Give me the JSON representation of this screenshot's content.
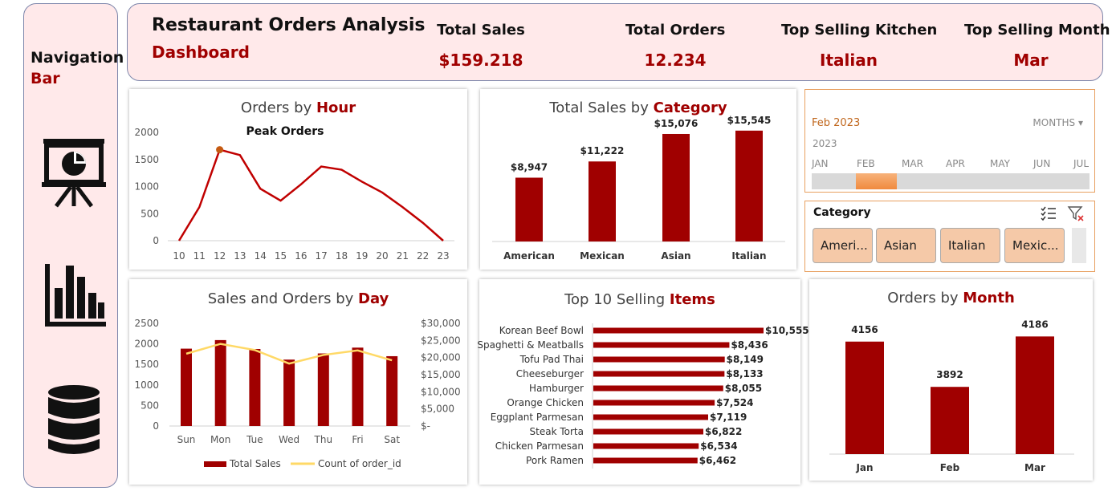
{
  "nav": {
    "title": "Navigation",
    "subtitle": "Bar",
    "icons": [
      "presentation-chart-icon",
      "bar-chart-icon",
      "database-icon"
    ]
  },
  "header": {
    "title": "Restaurant Orders Analysis",
    "subtitle": "Dashboard",
    "kpis": [
      {
        "label": "Total Sales",
        "value": "$159.218"
      },
      {
        "label": "Total Orders",
        "value": "12.234"
      },
      {
        "label": "Top Selling Kitchen",
        "value": "Italian"
      },
      {
        "label": "Top Selling Month",
        "value": "Mar"
      }
    ]
  },
  "colors": {
    "accent": "#a00000",
    "line": "#c00000",
    "marker": "#c55a11",
    "count_line": "#ffd966",
    "slicer": "#f5c9a8",
    "timeline": "#f08a3e"
  },
  "timeline": {
    "selected": "Feb 2023",
    "mode": "MONTHS",
    "year": "2023",
    "months": [
      "JAN",
      "FEB",
      "MAR",
      "APR",
      "MAY",
      "JUN",
      "JUL"
    ]
  },
  "slicer": {
    "title": "Category",
    "items": [
      "Ameri...",
      "Asian",
      "Italian",
      "Mexic..."
    ]
  },
  "charts": {
    "hour": {
      "title_plain": "Orders by ",
      "title_accent": "Hour"
    },
    "category": {
      "title_plain": "Total Sales by ",
      "title_accent": "Category"
    },
    "day": {
      "title_plain": "Sales and Orders by ",
      "title_accent": "Day"
    },
    "items": {
      "title_plain": "Top 10 Selling ",
      "title_accent": "Items"
    },
    "month": {
      "title_plain": "Orders by ",
      "title_accent": "Month"
    }
  },
  "chart_data": [
    {
      "id": "hour",
      "type": "line",
      "title": "Orders by Hour",
      "annotation": "Peak Orders",
      "x": [
        10,
        11,
        12,
        13,
        14,
        15,
        16,
        17,
        18,
        19,
        20,
        21,
        22,
        23
      ],
      "values": [
        0,
        620,
        1680,
        1580,
        960,
        740,
        1040,
        1370,
        1310,
        1090,
        890,
        620,
        330,
        0
      ],
      "y_ticks": [
        0,
        500,
        1000,
        1500,
        2000
      ],
      "ylim": [
        0,
        2000
      ],
      "peak_index": 2
    },
    {
      "id": "category",
      "type": "bar",
      "title": "Total Sales by Category",
      "categories": [
        "American",
        "Mexican",
        "Asian",
        "Italian"
      ],
      "values": [
        8947,
        11222,
        15076,
        15545
      ],
      "labels": [
        "$8,947",
        "$11,222",
        "$15,076",
        "$15,545"
      ],
      "ylim": [
        0,
        18000
      ]
    },
    {
      "id": "day",
      "type": "bar",
      "title": "Sales and Orders by Day",
      "categories": [
        "Sun",
        "Mon",
        "Tue",
        "Wed",
        "Thu",
        "Fri",
        "Sat"
      ],
      "series": [
        {
          "name": "Total Sales",
          "axis": "right",
          "values": [
            22600,
            25100,
            22500,
            19400,
            21200,
            22900,
            20400
          ]
        },
        {
          "name": "Count of order_id",
          "axis": "left",
          "values": [
            1760,
            2000,
            1850,
            1520,
            1730,
            1840,
            1600
          ]
        }
      ],
      "left_ticks": [
        0,
        500,
        1000,
        1500,
        2000,
        2500
      ],
      "left_lim": [
        0,
        2500
      ],
      "right_ticks": [
        "$-",
        "$5,000",
        "$10,000",
        "$15,000",
        "$20,000",
        "$25,000",
        "$30,000"
      ],
      "right_lim": [
        0,
        30000
      ]
    },
    {
      "id": "items",
      "type": "bar",
      "orientation": "horizontal",
      "title": "Top 10 Selling Items",
      "categories": [
        "Korean Beef Bowl",
        "Spaghetti & Meatballs",
        "Tofu Pad Thai",
        "Cheeseburger",
        "Hamburger",
        "Orange Chicken",
        "Eggplant Parmesan",
        "Steak Torta",
        "Chicken Parmesan",
        "Pork Ramen"
      ],
      "values": [
        10555,
        8436,
        8149,
        8133,
        8055,
        7524,
        7119,
        6822,
        6534,
        6462
      ],
      "labels": [
        "$10,555",
        "$8,436",
        "$8,149",
        "$8,133",
        "$8,055",
        "$7,524",
        "$7,119",
        "$6,822",
        "$6,534",
        "$6,462"
      ],
      "xlim": [
        0,
        10555
      ]
    },
    {
      "id": "month",
      "type": "bar",
      "title": "Orders by Month",
      "categories": [
        "Jan",
        "Feb",
        "Mar"
      ],
      "values": [
        4156,
        3892,
        4186
      ],
      "ylim": [
        3500,
        4300
      ]
    }
  ]
}
